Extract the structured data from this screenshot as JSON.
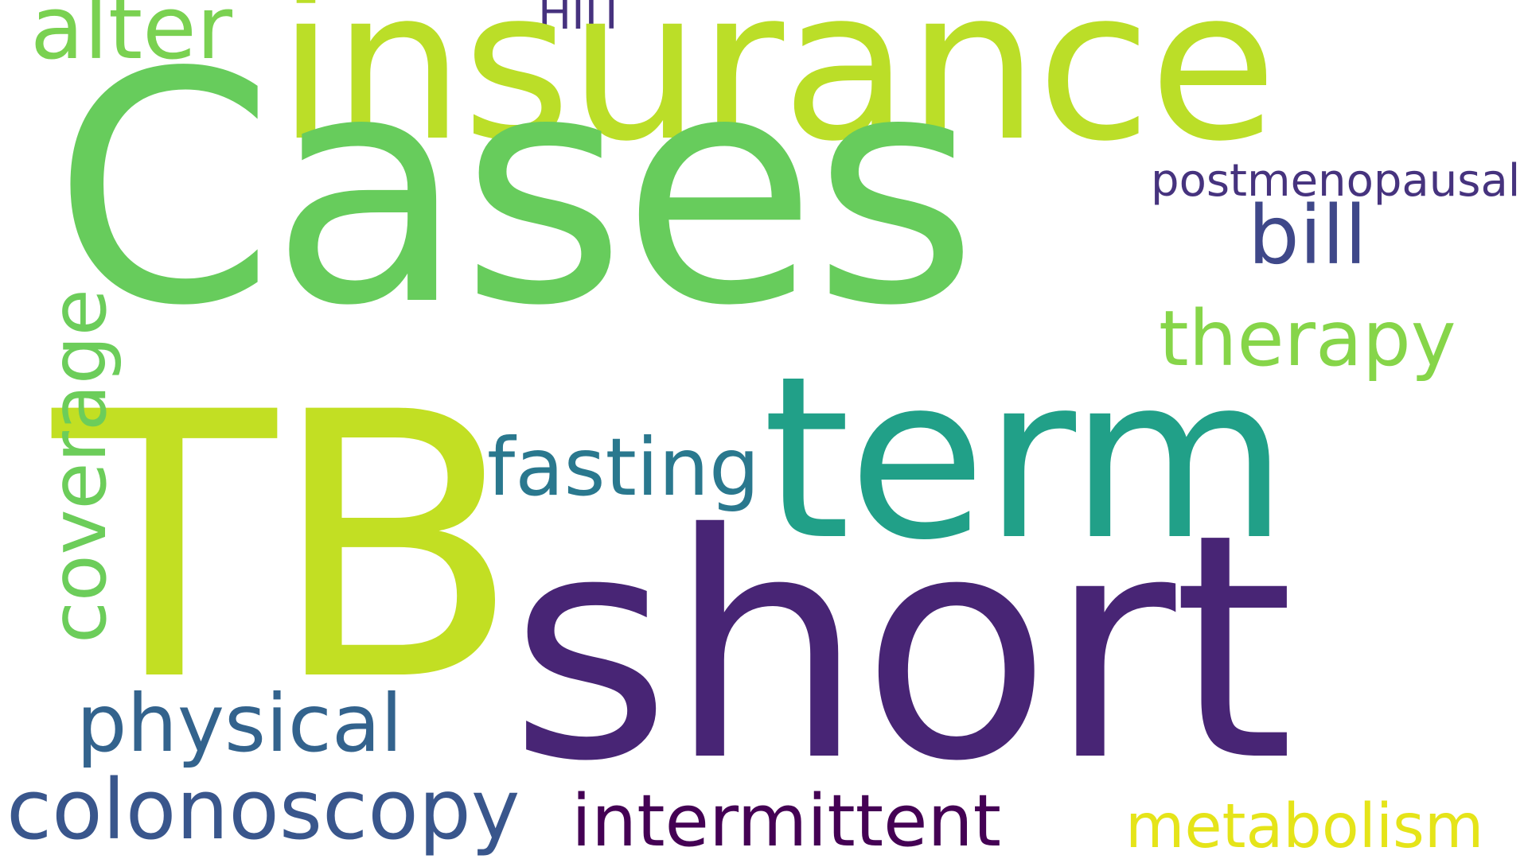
{
  "words": [
    {
      "id": "cases",
      "text": "Cases",
      "color": "#67CC5C"
    },
    {
      "id": "insurance",
      "text": "insurance",
      "color": "#BBDE28"
    },
    {
      "id": "tb",
      "text": "TB",
      "color": "#C2DF23"
    },
    {
      "id": "short",
      "text": "short",
      "color": "#482575"
    },
    {
      "id": "term",
      "text": "term",
      "color": "#21A088"
    },
    {
      "id": "alter",
      "text": "alter",
      "color": "#7AD151"
    },
    {
      "id": "hiit",
      "text": "HIIT",
      "color": "#46327E"
    },
    {
      "id": "postmenopausal",
      "text": "postmenopausal",
      "color": "#46337E"
    },
    {
      "id": "bill",
      "text": "bill",
      "color": "#3F4889"
    },
    {
      "id": "therapy",
      "text": "therapy",
      "color": "#86D549"
    },
    {
      "id": "fasting",
      "text": "fasting",
      "color": "#2A788E"
    },
    {
      "id": "coverage",
      "text": "coverage",
      "color": "#6CCD5A"
    },
    {
      "id": "physical",
      "text": "physical",
      "color": "#33638D"
    },
    {
      "id": "colonoscopy",
      "text": "colonoscopy",
      "color": "#39568C"
    },
    {
      "id": "intermittent",
      "text": "intermittent",
      "color": "#440154"
    },
    {
      "id": "metabolism",
      "text": "metabolism",
      "color": "#E5E419"
    }
  ]
}
